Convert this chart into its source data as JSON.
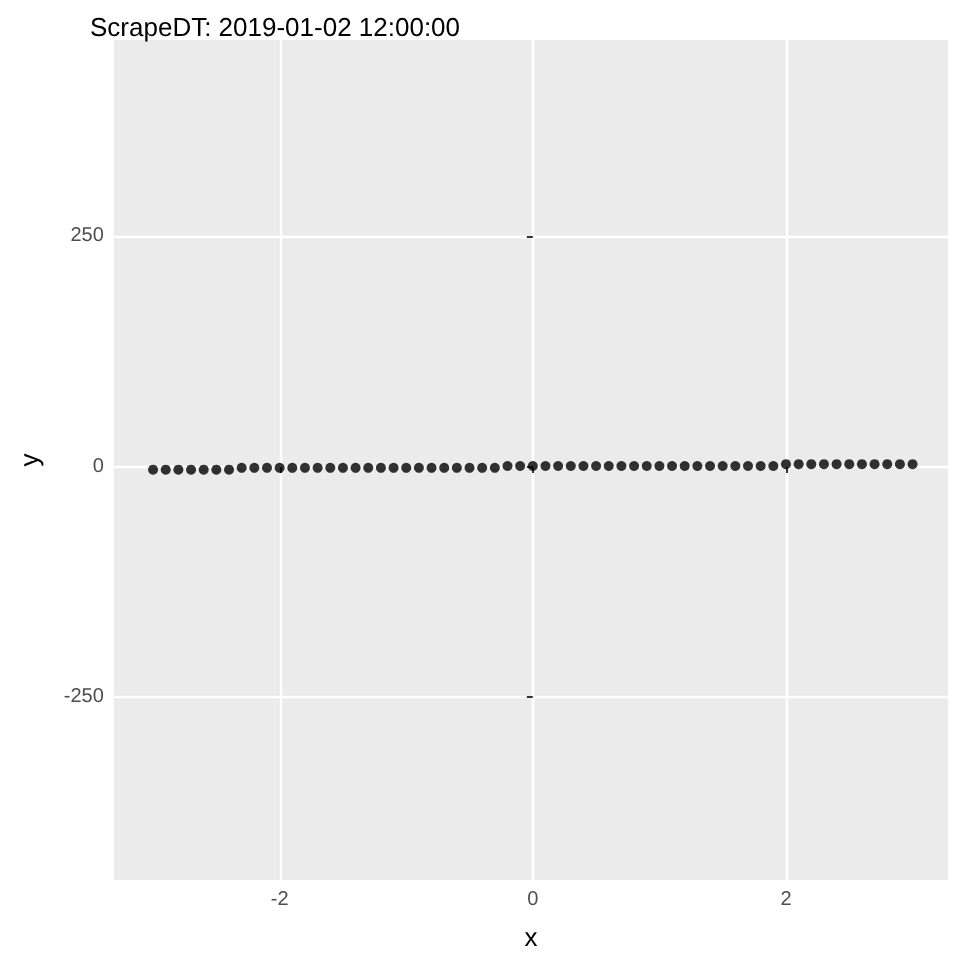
{
  "chart_data": {
    "type": "scatter",
    "title": "ScrapeDT: 2019-01-02 12:00:00",
    "xlabel": "x",
    "ylabel": "y",
    "xlim": [
      -3.31,
      3.28
    ],
    "ylim": [
      -448,
      463
    ],
    "xticks": [
      -2,
      0,
      2
    ],
    "yticks": [
      -250,
      0,
      250
    ],
    "grid": true,
    "marker": "circle",
    "series": [
      {
        "color": "#000000",
        "x": [
          -3.0,
          -2.9,
          -2.8,
          -2.7,
          -2.6,
          -2.5,
          -2.4,
          -2.3,
          -2.2,
          -2.1,
          -2.0,
          -1.9,
          -1.8,
          -1.7,
          -1.6,
          -1.5,
          -1.4,
          -1.3,
          -1.2,
          -1.1,
          -1.0,
          -0.9,
          -0.8,
          -0.7,
          -0.6,
          -0.5,
          -0.4,
          -0.3,
          -0.2,
          -0.1,
          0.0,
          0.1,
          0.2,
          0.3,
          0.4,
          0.5,
          0.6,
          0.7,
          0.8,
          0.9,
          1.0,
          1.1,
          1.2,
          1.3,
          1.4,
          1.5,
          1.6,
          1.7,
          1.8,
          1.9,
          2.0,
          2.1,
          2.2,
          2.3,
          2.4,
          2.5,
          2.6,
          2.7,
          2.8,
          2.9,
          3.0
        ],
        "values": [
          -3,
          -3,
          -3,
          -3,
          -3,
          -3,
          -3,
          -1,
          -1,
          -1,
          -1,
          -1,
          -1,
          -1,
          -1,
          -1,
          -1,
          -1,
          -1,
          -1,
          -1,
          -1,
          -1,
          -1,
          -1,
          -1,
          -1,
          -1,
          1,
          1,
          1,
          1,
          1,
          1,
          1,
          1,
          1,
          1,
          1,
          1,
          1,
          1,
          1,
          1,
          1,
          1,
          1,
          1,
          1,
          1,
          3,
          3,
          3,
          3,
          3,
          3,
          3,
          3,
          3,
          3,
          3
        ]
      }
    ]
  }
}
